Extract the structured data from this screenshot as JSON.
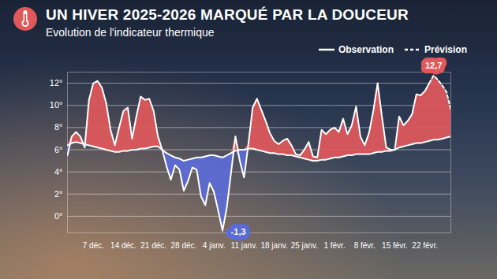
{
  "chart_data": {
    "type": "area",
    "title": "UN HIVER 2025-2026 MARQUÉ PAR LA DOUCEUR",
    "subtitle": "Evolution de l'indicateur thermique",
    "categories": [
      null,
      null,
      null,
      null,
      null,
      null,
      "7 déc.",
      null,
      null,
      null,
      null,
      null,
      null,
      "14 déc.",
      null,
      null,
      null,
      null,
      null,
      null,
      "21 déc.",
      null,
      null,
      null,
      null,
      null,
      null,
      "28 déc.",
      null,
      null,
      null,
      null,
      null,
      null,
      "4 janv.",
      null,
      null,
      null,
      null,
      null,
      null,
      "11 janv.",
      null,
      null,
      null,
      null,
      null,
      null,
      "18 janv.",
      null,
      null,
      null,
      null,
      null,
      null,
      "25 janv.",
      null,
      null,
      null,
      null,
      null,
      null,
      "1 févr.",
      null,
      null,
      null,
      null,
      null,
      null,
      "8 févr.",
      null,
      null,
      null,
      null,
      null,
      null,
      "15 févr.",
      null,
      null,
      null,
      null,
      null,
      null,
      "22 févr.",
      null,
      null,
      null,
      null,
      null,
      null
    ],
    "series": [
      {
        "name": "Observation",
        "color": "#ffffff",
        "line_style": "solid",
        "values": [
          5.5,
          7.2,
          7.6,
          7.2,
          6.2,
          10.5,
          12.0,
          12.2,
          11.6,
          10.2,
          7.8,
          6.4,
          8.0,
          9.5,
          9.8,
          7.0,
          9.0,
          10.8,
          10.5,
          10.6,
          9.5,
          7.2,
          6.0,
          4.5,
          3.3,
          4.6,
          4.2,
          2.3,
          3.2,
          4.4,
          4.2,
          1.8,
          1.0,
          3.0,
          2.2,
          0.5,
          -1.3,
          0.8,
          4.0,
          7.2,
          5.0,
          3.5,
          6.5,
          9.8,
          10.6,
          9.6,
          8.6,
          7.5,
          6.8,
          6.5,
          6.8,
          7.0,
          6.4,
          5.6,
          5.5,
          6.0,
          6.7,
          5.4,
          5.3,
          7.8,
          7.4,
          7.8,
          8.0,
          7.6,
          8.8,
          7.4,
          8.2,
          9.9,
          7.2,
          6.4,
          7.5,
          9.5,
          12.0,
          9.0,
          6.2,
          6.0,
          6.0,
          9.0,
          8.2,
          8.6,
          9.2,
          11.0,
          10.9,
          11.3,
          12.0,
          null,
          null,
          null,
          null,
          null
        ]
      },
      {
        "name": "Prévision",
        "color": "#ffffff",
        "line_style": "dashed",
        "values": [
          null,
          null,
          null,
          null,
          null,
          null,
          null,
          null,
          null,
          null,
          null,
          null,
          null,
          null,
          null,
          null,
          null,
          null,
          null,
          null,
          null,
          null,
          null,
          null,
          null,
          null,
          null,
          null,
          null,
          null,
          null,
          null,
          null,
          null,
          null,
          null,
          null,
          null,
          null,
          null,
          null,
          null,
          null,
          null,
          null,
          null,
          null,
          null,
          null,
          null,
          null,
          null,
          null,
          null,
          null,
          null,
          null,
          null,
          null,
          null,
          null,
          null,
          null,
          null,
          null,
          null,
          null,
          null,
          null,
          null,
          null,
          null,
          null,
          null,
          null,
          null,
          null,
          null,
          null,
          null,
          null,
          null,
          null,
          null,
          12.0,
          12.7,
          12.3,
          11.8,
          11.2,
          9.6
        ]
      },
      {
        "color": "#ffffff",
        "line_style": "solid",
        "values": [
          6.4,
          6.6,
          6.7,
          6.6,
          6.5,
          6.4,
          6.3,
          6.2,
          6.1,
          6.0,
          5.9,
          5.8,
          5.8,
          5.9,
          5.9,
          6.0,
          6.0,
          6.1,
          6.1,
          6.2,
          6.3,
          6.3,
          6.0,
          5.7,
          5.5,
          5.3,
          5.2,
          5.0,
          5.1,
          5.2,
          5.3,
          5.3,
          5.4,
          5.5,
          5.5,
          5.4,
          5.3,
          5.5,
          5.7,
          5.9,
          6.0,
          6.0,
          6.1,
          6.1,
          6.0,
          5.9,
          5.8,
          5.7,
          5.7,
          5.6,
          5.6,
          5.5,
          5.5,
          5.4,
          5.3,
          5.2,
          5.1,
          5.0,
          5.0,
          5.1,
          5.1,
          5.2,
          5.3,
          5.3,
          5.4,
          5.5,
          5.5,
          5.6,
          5.6,
          5.6,
          5.6,
          5.7,
          5.8,
          5.8,
          5.9,
          5.9,
          6.0,
          6.2,
          6.3,
          6.4,
          6.5,
          6.6,
          6.6,
          6.7,
          6.8,
          6.9,
          6.9,
          7.0,
          7.1,
          7.2
        ]
      }
    ],
    "ylim": [
      -1.5,
      13
    ],
    "yticks": [
      {
        "value": 0,
        "label": "0°"
      },
      {
        "value": 2,
        "label": "2°"
      },
      {
        "value": 4,
        "label": "4°"
      },
      {
        "value": 6,
        "label": "6°"
      },
      {
        "value": 8,
        "label": "8°"
      },
      {
        "value": 10,
        "label": "10°"
      },
      {
        "value": 12,
        "label": "12°"
      }
    ],
    "grid": true,
    "legend": "top-right",
    "annotations": [
      {
        "label": "12,7",
        "value": 12.7
      },
      {
        "label": "-1,3",
        "value": -1.3
      }
    ]
  }
}
